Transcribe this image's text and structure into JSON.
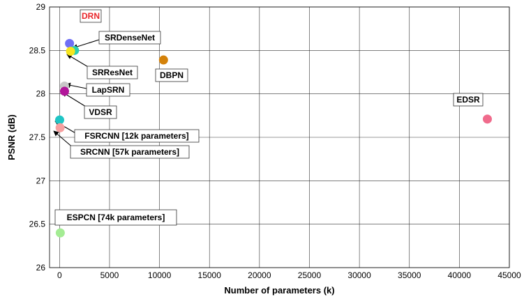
{
  "chart_data": {
    "type": "scatter",
    "xlabel": "Number of parameters (k)",
    "ylabel": "PSNR (dB)",
    "xlim": [
      -1000,
      45000
    ],
    "ylim": [
      26,
      29
    ],
    "xticks": [
      0,
      5000,
      10000,
      15000,
      20000,
      25000,
      30000,
      35000,
      40000,
      45000
    ],
    "yticks": [
      26,
      26.5,
      27,
      27.5,
      28,
      28.5,
      29
    ],
    "ytick_labels": [
      "26",
      "26.5",
      "27",
      "27.5",
      "28",
      "28.5",
      "29"
    ],
    "grid": true,
    "points": [
      {
        "label": "DRN",
        "x": 1000,
        "y": 28.58,
        "color": "#6f6ff5",
        "label_color": "#e8252a"
      },
      {
        "label": "SRDenseNet",
        "x": 1500,
        "y": 28.5,
        "color": "#2bd0b0",
        "label_color": "#000000"
      },
      {
        "label": "SRResNet",
        "x": 1100,
        "y": 28.49,
        "color": "#f6e51e",
        "label_color": "#000000"
      },
      {
        "label": "DBPN",
        "x": 10400,
        "y": 28.39,
        "color": "#d4820a",
        "label_color": "#000000"
      },
      {
        "label": "LapSRN",
        "x": 500,
        "y": 28.09,
        "color": "#c8c8c8",
        "label_color": "#000000"
      },
      {
        "label": "VDSR",
        "x": 500,
        "y": 28.03,
        "color": "#b2169a",
        "label_color": "#000000"
      },
      {
        "label": "EDSR",
        "x": 42800,
        "y": 27.71,
        "color": "#f06b8c",
        "label_color": "#000000"
      },
      {
        "label": "FSRCNN [12k parameters]",
        "x": 12,
        "y": 27.7,
        "color": "#1fc5c5",
        "label_color": "#000000"
      },
      {
        "label": "SRCNN [57k parameters]",
        "x": 57,
        "y": 27.61,
        "color": "#f7a0a0",
        "label_color": "#000000"
      },
      {
        "label": "ESPCN [74k parameters]",
        "x": 74,
        "y": 26.4,
        "color": "#a4ec94",
        "label_color": "#000000"
      }
    ]
  }
}
